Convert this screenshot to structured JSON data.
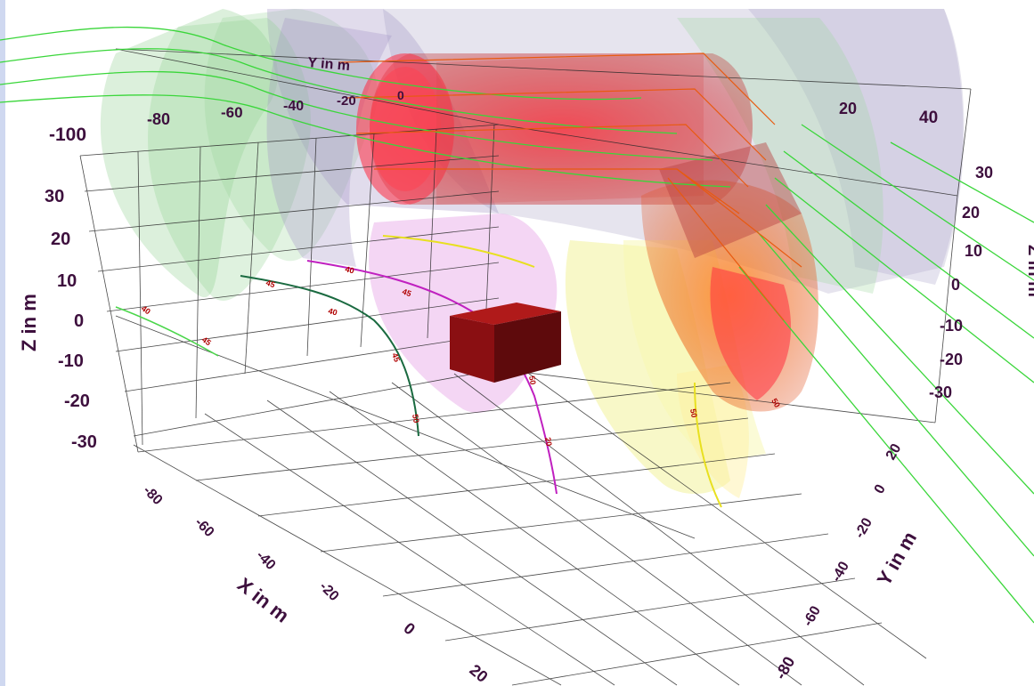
{
  "chart_data": {
    "type": "3d-surface",
    "axes": {
      "x": {
        "label": "X in m",
        "ticks": [
          "-80",
          "-60",
          "-40",
          "-20",
          "0",
          "20"
        ]
      },
      "y": {
        "label": "Y in m",
        "ticks": [
          "20",
          "0",
          "-20",
          "-40",
          "-60",
          "-80"
        ]
      },
      "y_top": {
        "label": "Y in m",
        "ticks": [
          "-100",
          "-80",
          "-60",
          "-40",
          "-20",
          "0",
          "20",
          "40"
        ]
      },
      "z_left": {
        "label": "Z in m",
        "ticks": [
          "30",
          "20",
          "10",
          "0",
          "-10",
          "-20",
          "-30"
        ]
      },
      "z_right": {
        "label": "Z in m",
        "ticks": [
          "30",
          "20",
          "10",
          "0",
          "-10",
          "-20",
          "-30"
        ]
      }
    },
    "contour_labels": [
      "40",
      "45",
      "45",
      "40",
      "45",
      "50",
      "40",
      "45",
      "20",
      "50",
      "50",
      "50"
    ],
    "colors": {
      "green_surface": "#9ad49a",
      "purple_surface": "#a89cc8",
      "magenta_surface": "#e08ae0",
      "yellow_surface": "#f3f39a",
      "red_core": "#e8303c",
      "orange_core": "#f07a2a",
      "box": "#8a0f12",
      "grid": "#2a2a2a",
      "green_rays": "#3ad63a",
      "dark_green_curve": "#1a6a40",
      "magenta_curve": "#c020c0",
      "yellow_curve": "#e8e020",
      "label_color": "#3d0f3d"
    }
  }
}
